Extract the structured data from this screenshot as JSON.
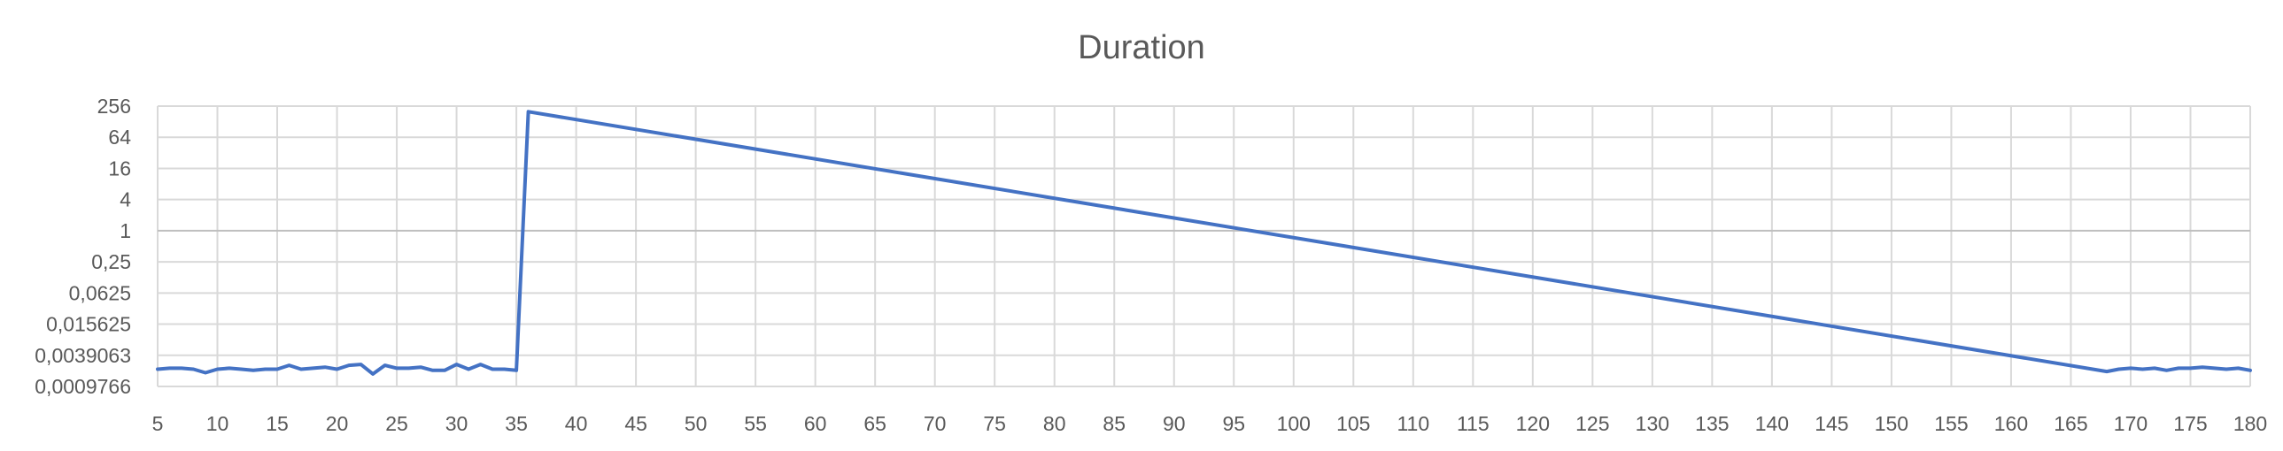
{
  "chart_data": {
    "type": "line",
    "title": "Duration",
    "xlabel": "",
    "ylabel": "",
    "y_scale": "log2",
    "ylim": [
      0.0009765625,
      256
    ],
    "xlim": [
      5,
      180
    ],
    "grid": true,
    "legend": "none",
    "colors": {
      "series": "#4472c4",
      "grid": "#d9d9d9",
      "text": "#595959"
    },
    "y_tick_labels": [
      "256",
      "64",
      "16",
      "4",
      "1",
      "0,25",
      "0,0625",
      "0,015625",
      "0,0039063",
      "0,0009766"
    ],
    "y_tick_values": [
      256,
      64,
      16,
      4,
      1,
      0.25,
      0.0625,
      0.015625,
      0.00390625,
      0.0009765625
    ],
    "x_tick_labels": [
      "5",
      "10",
      "15",
      "20",
      "25",
      "30",
      "35",
      "40",
      "45",
      "50",
      "55",
      "60",
      "65",
      "70",
      "75",
      "80",
      "85",
      "90",
      "95",
      "100",
      "105",
      "110",
      "115",
      "120",
      "125",
      "130",
      "135",
      "140",
      "145",
      "150",
      "155",
      "160",
      "165",
      "170",
      "175",
      "180"
    ],
    "x_tick_values": [
      5,
      10,
      15,
      20,
      25,
      30,
      35,
      40,
      45,
      50,
      55,
      60,
      65,
      70,
      75,
      80,
      85,
      90,
      95,
      100,
      105,
      110,
      115,
      120,
      125,
      130,
      135,
      140,
      145,
      150,
      155,
      160,
      165,
      170,
      175,
      180
    ],
    "series": [
      {
        "x": [
          5,
          6,
          7,
          8,
          9,
          10,
          11,
          12,
          13,
          14,
          15,
          16,
          17,
          18,
          19,
          20,
          21,
          22,
          23,
          24,
          25,
          26,
          27,
          28,
          29,
          30,
          31,
          32,
          33,
          34,
          35,
          36,
          168,
          169,
          170,
          171,
          172,
          173,
          174,
          175,
          176,
          177,
          178,
          179,
          180
        ],
        "values": [
          0.0021,
          0.0022,
          0.0022,
          0.0021,
          0.0018,
          0.0021,
          0.0022,
          0.0021,
          0.002,
          0.0021,
          0.0021,
          0.0025,
          0.0021,
          0.0022,
          0.0023,
          0.0021,
          0.0025,
          0.0026,
          0.0017,
          0.0025,
          0.0022,
          0.0022,
          0.0023,
          0.002,
          0.002,
          0.0026,
          0.0021,
          0.0026,
          0.0021,
          0.0021,
          0.002,
          200,
          0.0019,
          0.0021,
          0.0022,
          0.0021,
          0.0022,
          0.002,
          0.0022,
          0.0022,
          0.0023,
          0.0022,
          0.0021,
          0.0022,
          0.002
        ]
      }
    ]
  }
}
